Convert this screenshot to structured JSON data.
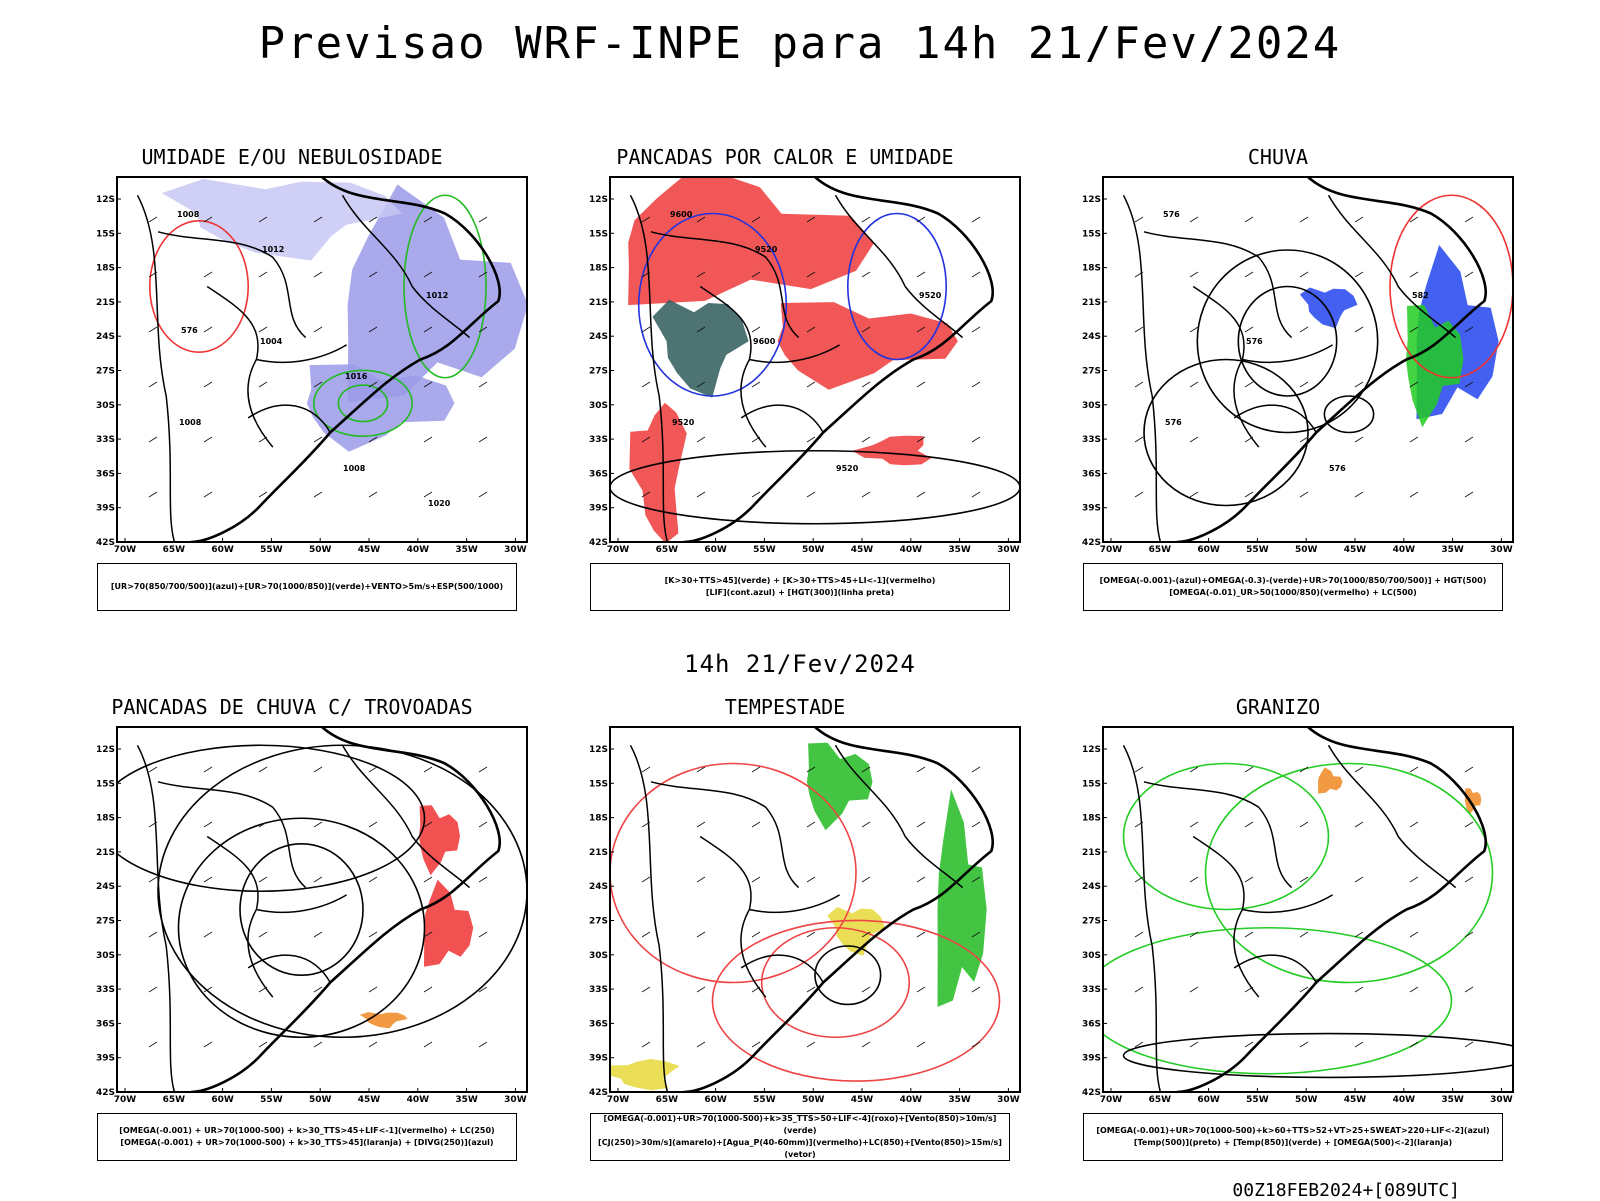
{
  "main_title": "Previsao WRF-INPE  para 14h 21/Fev/2024",
  "mid_title": "14h 21/Fev/2024",
  "footer": "00Z18FEB2024+[089UTC]",
  "axes": {
    "lat_labels": [
      "12S",
      "15S",
      "18S",
      "21S",
      "24S",
      "27S",
      "30S",
      "33S",
      "36S",
      "39S",
      "42S"
    ],
    "lon_labels": [
      "70W",
      "65W",
      "60W",
      "55W",
      "50W",
      "45W",
      "40W",
      "35W",
      "30W"
    ]
  },
  "panels": [
    {
      "id": "umidade",
      "title": "UMIDADE E/OU NEBULOSIDADE",
      "legend": [
        "[UR>70(850/700/500)](azul)+[UR>70(1000/850)](verde)+VENTO>5m/s+ESP(500/1000)"
      ],
      "contour_labels": [
        "1008",
        "1004",
        "1008",
        "1012",
        "1008",
        "1012",
        "1016",
        "1020",
        "576"
      ],
      "colors": {
        "fill1": "#9a9ae8",
        "fill2": "#c8c8f4",
        "line1": "#22bb22",
        "line2": "#ee3333"
      }
    },
    {
      "id": "pancadas-calor",
      "title": "PANCADAS POR CALOR E UMIDADE",
      "legend": [
        "[K>30+TTS>45](verde) + [K>30+TTS>45+LI<-1](vermelho)",
        "[LIF](cont.azul) + [HGT(300)](linha preta)"
      ],
      "contour_labels": [
        "9600",
        "9600",
        "9520",
        "9520",
        "9520",
        "9520"
      ],
      "colors": {
        "fill1": "#f03a3a",
        "fill2": "#2e5a5a",
        "line1": "#2233dd",
        "line2": "#000000"
      }
    },
    {
      "id": "chuva",
      "title": "CHUVA",
      "legend": [
        "[OMEGA(-0.001)-(azul)+OMEGA(-0.3)-(verde)+UR>70(1000/850/700/500)] + HGT(500)",
        "[OMEGA(-0.01)_UR>50(1000/850)(vermelho) + LC(500)"
      ],
      "contour_labels": [
        "576",
        "576",
        "576",
        "582",
        "576"
      ],
      "colors": {
        "fill1": "#2244ee",
        "fill2": "#22cc22",
        "line1": "#ee3333",
        "line2": "#000000"
      }
    },
    {
      "id": "pancadas-trovoadas",
      "title": "PANCADAS DE CHUVA C/ TROVOADAS",
      "legend": [
        "[OMEGA(-0.001) + UR>70(1000-500) + k>30_TTS>45+LIF<-1](vermelho) + LC(250)",
        "[OMEGA(-0.001) + UR>70(1000-500) + k>30_TTS>45](laranja) + [DIVG(250)](azul)"
      ],
      "contour_labels": [],
      "colors": {
        "fill1": "#ee3333",
        "fill2": "#ee8822",
        "line1": "#2244ee",
        "line2": "#000000"
      }
    },
    {
      "id": "tempestade",
      "title": "TEMPESTADE",
      "legend": [
        "[OMEGA(-0.001)+UR>70(1000-500)+k>35_TTS>50+LIF<-4](roxo)+[Vento(850)>10m/s](verde)",
        "[CJ(250)>30m/s](amarelo)+[Agua_P(40-60mm)](vermelho)+LC(850)+[Vento(850)>15m/s](vetor)"
      ],
      "contour_labels": [],
      "colors": {
        "fill1": "#22bb22",
        "fill2": "#e8d83a",
        "line1": "#ee4444",
        "line2": "#000000"
      }
    },
    {
      "id": "granizo",
      "title": "GRANIZO",
      "legend": [
        "[OMEGA(-0.001)+UR>70(1000-500)+k>60+TTS>52+VT>25+SWEAT>220+LIF<-2](azul)",
        "[Temp(500)](preto) + [Temp(850)](verde) + [OMEGA(500)<-2](laranja)"
      ],
      "contour_labels": [],
      "colors": {
        "fill1": "#ee8822",
        "fill2": "#22cc22",
        "line1": "#22cc22",
        "line2": "#000000"
      }
    }
  ]
}
